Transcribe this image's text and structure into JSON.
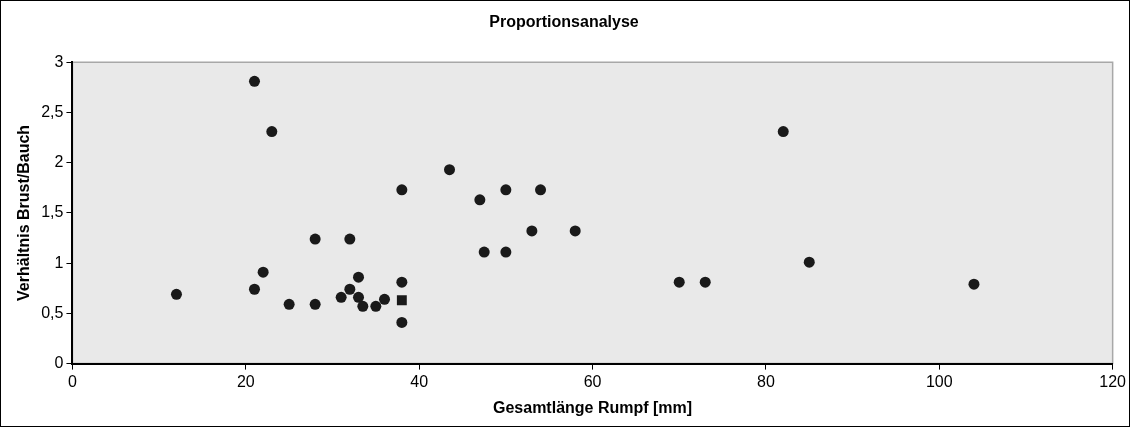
{
  "chart_data": {
    "type": "scatter",
    "title": "Proportionsanalyse",
    "xlabel": "Gesamtlänge Rumpf [mm]",
    "ylabel": "Verhältnis Brust/Bauch",
    "xlim": [
      0,
      120
    ],
    "xticks": [
      0,
      20,
      40,
      60,
      80,
      100,
      120
    ],
    "ylim": [
      0,
      3
    ],
    "yticks": [
      0,
      {
        "value": 0.5,
        "label": "0,5"
      },
      1,
      {
        "value": 1.5,
        "label": "1,5"
      },
      2,
      {
        "value": 2.5,
        "label": "2,5"
      },
      3
    ],
    "grid": false,
    "legend": false,
    "marker": "circle",
    "series": [
      {
        "color": "#1a1a1a",
        "x": [
          12,
          21,
          23,
          21,
          22,
          25,
          28,
          28,
          31,
          32,
          32,
          33,
          33,
          33.5,
          35,
          36,
          38,
          38,
          38,
          43.5,
          47,
          47.5,
          50,
          50,
          53,
          54,
          58,
          70,
          73,
          82,
          85,
          104
        ],
        "values": [
          0.69,
          2.81,
          2.31,
          0.74,
          0.91,
          0.59,
          1.24,
          0.59,
          0.66,
          1.24,
          0.74,
          0.86,
          0.66,
          0.57,
          0.57,
          0.64,
          1.73,
          0.81,
          0.41,
          1.93,
          1.63,
          1.11,
          1.73,
          1.11,
          1.32,
          1.73,
          1.32,
          0.81,
          0.81,
          2.31,
          1.01,
          0.79
        ]
      },
      {
        "color": "#1a1a1a",
        "marker": "square",
        "x": [
          38
        ],
        "values": [
          0.63
        ]
      }
    ]
  }
}
